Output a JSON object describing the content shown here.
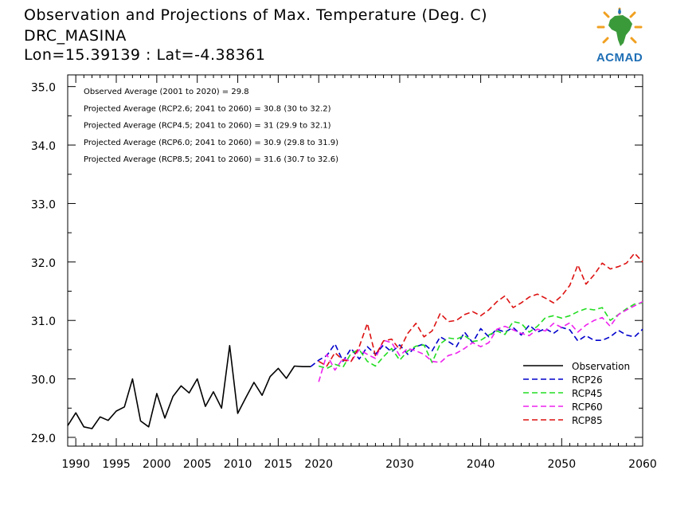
{
  "header": {
    "title": "Observation and Projections of Max. Temperature (Deg. C)",
    "location": "DRC_MASINA",
    "coords": "Lon=15.39139 : Lat=-4.38361"
  },
  "logo": {
    "text": "ACMAD"
  },
  "annotations": [
    "Observed Average (2001 to 2020) = 29.8",
    "Projected Average (RCP2.6; 2041 to 2060) = 30.8 (30 to 32.2)",
    "Projected Average (RCP4.5; 2041 to 2060) = 31 (29.9 to 32.1)",
    "Projected Average (RCP6.0; 2041 to 2060) = 30.9 (29.8 to 31.9)",
    "Projected Average (RCP8.5; 2041 to 2060) = 31.6 (30.7 to 32.6)"
  ],
  "chart_data": {
    "type": "line",
    "xlim": [
      1989,
      2060
    ],
    "ylim": [
      28.85,
      35.2
    ],
    "x_ticks": [
      1990,
      1995,
      2000,
      2005,
      2010,
      2015,
      2020,
      2030,
      2040,
      2050,
      2060
    ],
    "y_ticks": [
      "29.0",
      "30.0",
      "31.0",
      "32.0",
      "33.0",
      "34.0",
      "35.0"
    ],
    "legend_position": "bottom-right",
    "series": [
      {
        "name": "Observation",
        "color": "#000000",
        "dash": "solid",
        "x": [
          1989,
          1990,
          1991,
          1992,
          1993,
          1994,
          1995,
          1996,
          1997,
          1998,
          1999,
          2000,
          2001,
          2002,
          2003,
          2004,
          2005,
          2006,
          2007,
          2008,
          2009,
          2010,
          2011,
          2012,
          2013,
          2014,
          2015,
          2016,
          2017,
          2018,
          2019
        ],
        "y": [
          29.2,
          29.42,
          29.18,
          29.15,
          29.35,
          29.29,
          29.45,
          29.52,
          30.0,
          29.28,
          29.18,
          29.75,
          29.33,
          29.7,
          29.88,
          29.76,
          30.0,
          29.53,
          29.78,
          29.5,
          30.57,
          29.41,
          29.68,
          29.94,
          29.72,
          30.04,
          30.18,
          30.01,
          30.22,
          30.21,
          30.21
        ]
      },
      {
        "name": "RCP26",
        "color": "#0000cc",
        "dash": "dashed",
        "x": [
          2019,
          2020,
          2021,
          2022,
          2023,
          2024,
          2025,
          2026,
          2027,
          2028,
          2029,
          2030,
          2031,
          2032,
          2033,
          2034,
          2035,
          2036,
          2037,
          2038,
          2039,
          2040,
          2041,
          2042,
          2043,
          2044,
          2045,
          2046,
          2047,
          2048,
          2049,
          2050,
          2051,
          2052,
          2053,
          2054,
          2055,
          2056,
          2057,
          2058,
          2059,
          2060
        ],
        "y": [
          30.21,
          30.32,
          30.4,
          30.6,
          30.3,
          30.52,
          30.34,
          30.55,
          30.42,
          30.58,
          30.46,
          30.58,
          30.42,
          30.55,
          30.6,
          30.48,
          30.72,
          30.64,
          30.55,
          30.8,
          30.62,
          30.86,
          30.72,
          30.85,
          30.8,
          30.88,
          30.75,
          30.92,
          30.8,
          30.86,
          30.78,
          30.88,
          30.84,
          30.65,
          30.74,
          30.66,
          30.66,
          30.72,
          30.83,
          30.75,
          30.72,
          30.85
        ]
      },
      {
        "name": "RCP45",
        "color": "#22dd22",
        "dash": "dashed",
        "x": [
          2020,
          2021,
          2022,
          2023,
          2024,
          2025,
          2026,
          2027,
          2028,
          2029,
          2030,
          2031,
          2032,
          2033,
          2034,
          2035,
          2036,
          2037,
          2038,
          2039,
          2040,
          2041,
          2042,
          2043,
          2044,
          2045,
          2046,
          2047,
          2048,
          2049,
          2050,
          2051,
          2052,
          2053,
          2054,
          2055,
          2056,
          2057,
          2058,
          2059,
          2060
        ],
        "y": [
          30.22,
          30.18,
          30.25,
          30.2,
          30.44,
          30.5,
          30.3,
          30.22,
          30.38,
          30.52,
          30.32,
          30.48,
          30.56,
          30.58,
          30.28,
          30.6,
          30.7,
          30.68,
          30.74,
          30.64,
          30.66,
          30.75,
          30.82,
          30.76,
          30.98,
          30.95,
          30.8,
          30.9,
          31.05,
          31.08,
          31.04,
          31.08,
          31.15,
          31.2,
          31.18,
          31.22,
          31.0,
          31.1,
          31.2,
          31.28,
          31.3
        ]
      },
      {
        "name": "RCP60",
        "color": "#ee22ee",
        "dash": "dashed",
        "x": [
          2020,
          2021,
          2022,
          2023,
          2024,
          2025,
          2026,
          2027,
          2028,
          2029,
          2030,
          2031,
          2032,
          2033,
          2034,
          2035,
          2036,
          2037,
          2038,
          2039,
          2040,
          2041,
          2042,
          2043,
          2044,
          2045,
          2046,
          2047,
          2048,
          2049,
          2050,
          2051,
          2052,
          2053,
          2054,
          2055,
          2056,
          2057,
          2058,
          2059,
          2060
        ],
        "y": [
          29.95,
          30.42,
          30.15,
          30.35,
          30.3,
          30.5,
          30.42,
          30.35,
          30.66,
          30.62,
          30.4,
          30.52,
          30.48,
          30.42,
          30.3,
          30.28,
          30.4,
          30.44,
          30.52,
          30.62,
          30.55,
          30.62,
          30.85,
          30.9,
          30.84,
          30.78,
          30.74,
          30.85,
          30.82,
          30.95,
          30.88,
          30.96,
          30.8,
          30.92,
          31.0,
          31.05,
          30.9,
          31.1,
          31.18,
          31.25,
          31.32
        ]
      },
      {
        "name": "RCP85",
        "color": "#dd1111",
        "dash": "dashed",
        "x": [
          2020,
          2021,
          2022,
          2023,
          2024,
          2025,
          2026,
          2027,
          2028,
          2029,
          2030,
          2031,
          2032,
          2033,
          2034,
          2035,
          2036,
          2037,
          2038,
          2039,
          2040,
          2041,
          2042,
          2043,
          2044,
          2045,
          2046,
          2047,
          2048,
          2049,
          2050,
          2051,
          2052,
          2053,
          2054,
          2055,
          2056,
          2057,
          2058,
          2059,
          2060
        ],
        "y": [
          30.3,
          30.22,
          30.45,
          30.32,
          30.3,
          30.55,
          30.95,
          30.4,
          30.65,
          30.68,
          30.5,
          30.78,
          30.95,
          30.72,
          30.82,
          31.12,
          30.98,
          31.0,
          31.1,
          31.15,
          31.08,
          31.18,
          31.32,
          31.42,
          31.22,
          31.3,
          31.4,
          31.45,
          31.38,
          31.3,
          31.42,
          31.6,
          31.95,
          31.62,
          31.78,
          31.98,
          31.88,
          31.92,
          31.98,
          32.15,
          32.0
        ]
      }
    ]
  }
}
